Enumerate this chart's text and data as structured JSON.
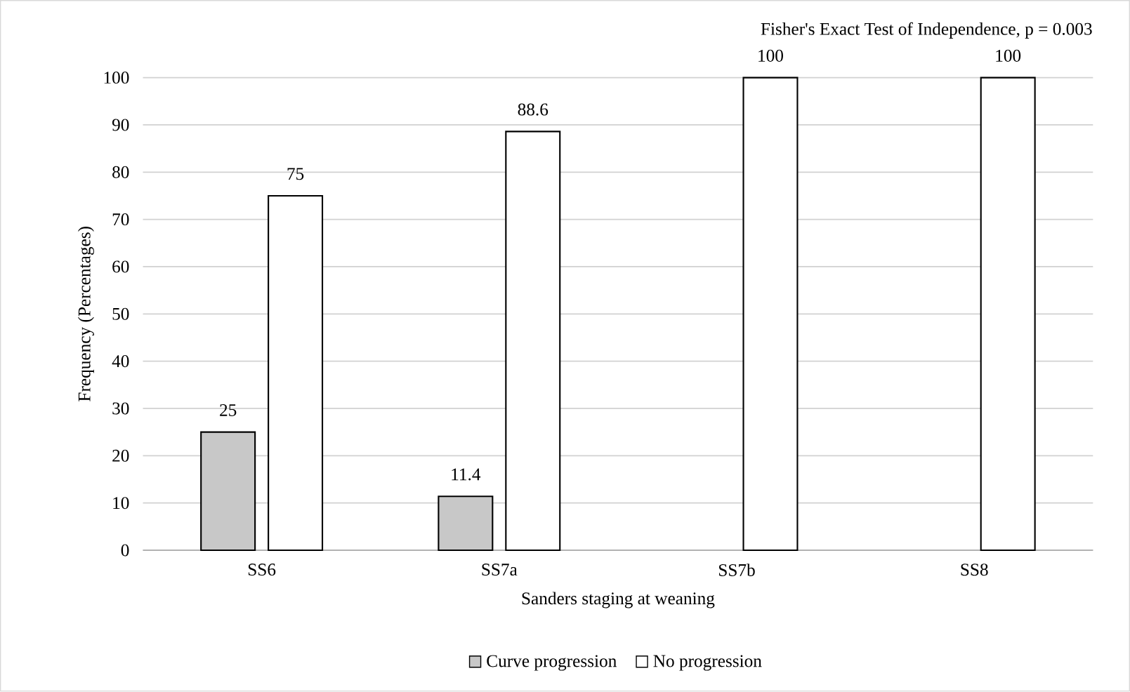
{
  "chart_data": {
    "type": "bar",
    "xlabel": "Sanders staging at weaning",
    "ylabel": "Frequency (Percentages)",
    "categories": [
      "SS6",
      "SS7a",
      "SS7b",
      "SS8"
    ],
    "series": [
      {
        "name": "Curve progression",
        "color": "#c8c8c8",
        "values": [
          25,
          11.4,
          null,
          null
        ],
        "value_labels": [
          "25",
          "11.4",
          null,
          null
        ]
      },
      {
        "name": "No progression",
        "color": "#ffffff",
        "values": [
          75,
          88.6,
          100,
          100
        ],
        "value_labels": [
          "75",
          "88.6",
          "100",
          "100"
        ]
      }
    ],
    "ylim": [
      0,
      100
    ],
    "yticks": [
      0,
      10,
      20,
      30,
      40,
      50,
      60,
      70,
      80,
      90,
      100
    ],
    "grid": "y",
    "legend": "bottom",
    "annotations": [
      "Fisher's Exact Test of Independence, p = 0.003"
    ]
  }
}
